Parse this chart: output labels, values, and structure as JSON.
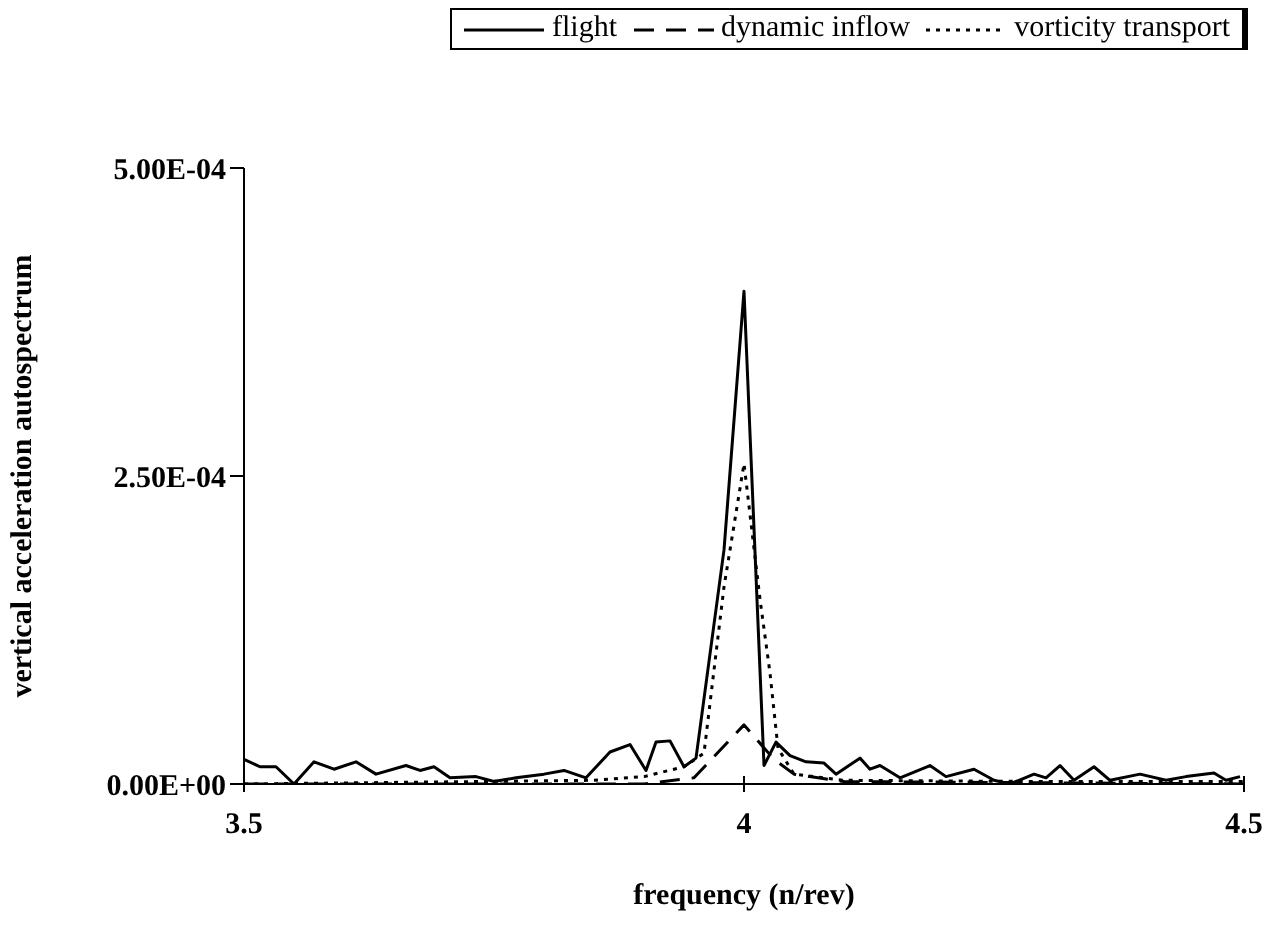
{
  "chart_data": {
    "type": "line",
    "xlabel": "frequency (n/rev)",
    "ylabel": "vertical acceleration autospectrum",
    "xlim": [
      3.5,
      4.5
    ],
    "xticks": [
      3.5,
      4,
      4.5
    ],
    "ylim": [
      0,
      0.0005
    ],
    "yticks": [
      {
        "value": 0,
        "label": "0.00E+00"
      },
      {
        "value": 0.00025,
        "label": "2.50E-04"
      },
      {
        "value": 0.0005,
        "label": "5.00E-04"
      }
    ],
    "grid": false,
    "legend": "top right",
    "marker": "none",
    "series": [
      {
        "name": "flight",
        "color": "#000000",
        "line_style": "solid",
        "x": [
          3.5,
          3.516,
          3.532,
          3.55,
          3.57,
          3.59,
          3.612,
          3.632,
          3.662,
          3.676,
          3.69,
          3.706,
          3.732,
          3.75,
          3.772,
          3.8,
          3.82,
          3.842,
          3.866,
          3.886,
          3.902,
          3.912,
          3.926,
          3.94,
          3.952,
          3.98,
          4.0,
          4.02,
          4.032,
          4.046,
          4.062,
          4.08,
          4.092,
          4.116,
          4.126,
          4.136,
          4.156,
          4.186,
          4.202,
          4.23,
          4.25,
          4.266,
          4.29,
          4.302,
          4.316,
          4.33,
          4.35,
          4.366,
          4.396,
          4.422,
          4.442,
          4.47,
          4.482,
          4.496
        ],
        "values": [
          2e-05,
          1.4e-05,
          1.4e-05,
          0,
          1.8e-05,
          1.2e-05,
          1.8e-05,
          8e-06,
          1.5e-05,
          1.1e-05,
          1.4e-05,
          5e-06,
          6e-06,
          2e-06,
          5e-06,
          8e-06,
          1.1e-05,
          5e-06,
          2.6e-05,
          3.2e-05,
          1.1e-05,
          3.4e-05,
          3.5e-05,
          1.4e-05,
          2.1e-05,
          0.00019,
          0.0004,
          1.5e-05,
          3.4e-05,
          2.3e-05,
          1.8e-05,
          1.7e-05,
          8e-06,
          2.1e-05,
          1.2e-05,
          1.5e-05,
          5e-06,
          1.5e-05,
          6e-06,
          1.2e-05,
          3e-06,
          0,
          8e-06,
          5e-06,
          1.5e-05,
          3e-06,
          1.4e-05,
          3e-06,
          8e-06,
          3e-06,
          6e-06,
          9e-06,
          3e-06,
          6e-06
        ]
      },
      {
        "name": "dynamic inflow",
        "color": "#000000",
        "line_style": "dashed",
        "x": [
          3.5,
          3.9,
          3.95,
          4.0,
          4.03,
          4.05,
          4.1,
          4.5
        ],
        "values": [
          0,
          0,
          5e-06,
          4.8e-05,
          2e-05,
          8e-06,
          2e-06,
          0
        ]
      },
      {
        "name": "vorticity transport",
        "color": "#000000",
        "line_style": "dotted",
        "x": [
          3.5,
          3.85,
          3.9,
          3.94,
          3.96,
          3.98,
          4.0,
          4.016,
          4.026,
          4.034,
          4.05,
          4.1,
          4.3,
          4.5
        ],
        "values": [
          0,
          3e-06,
          6e-06,
          1.4e-05,
          2.5e-05,
          0.00016,
          0.00026,
          0.00015,
          9e-05,
          2.9e-05,
          8e-06,
          3e-06,
          2e-06,
          2e-06
        ]
      }
    ]
  }
}
